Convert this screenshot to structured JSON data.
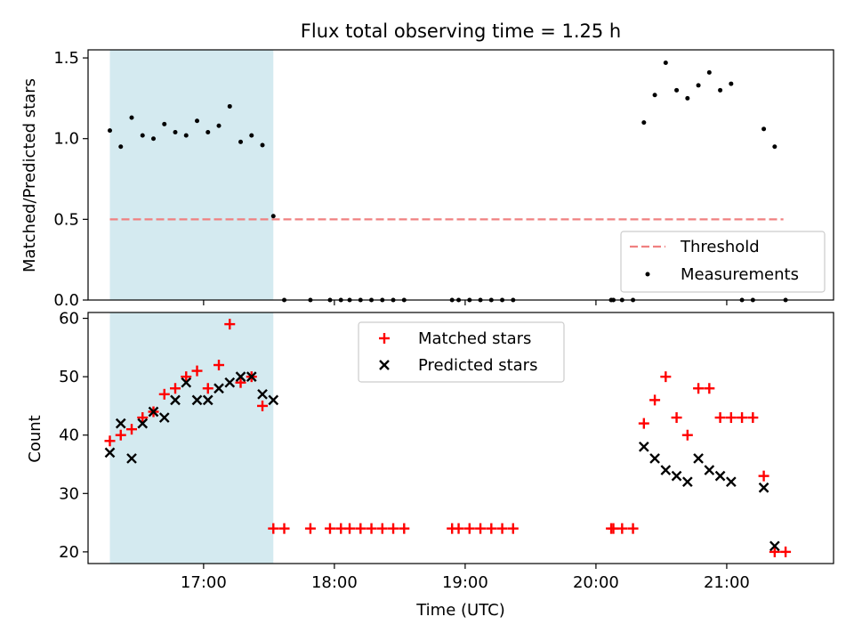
{
  "figure": {
    "title": "Flux total observing time = 1.25 h"
  },
  "chart_data": [
    {
      "type": "scatter",
      "panel": "top",
      "ylabel": "Matched/Predicted stars",
      "xlabel": "",
      "xlim": [
        "16:07",
        "21:49"
      ],
      "ylim": [
        0,
        1.55
      ],
      "yticks": [
        0.0,
        0.5,
        1.0,
        1.5
      ],
      "ytick_labels": [
        "0.0",
        "0.5",
        "1.0",
        "1.5"
      ],
      "grid": false,
      "legend_location": "lower right",
      "shaded_interval": {
        "start": "16:17",
        "end": "17:32",
        "color": "#d4eaf0"
      },
      "threshold": {
        "name": "Threshold",
        "value": 0.5,
        "start": "16:17",
        "end": "21:26",
        "color": "#f08080"
      },
      "series": [
        {
          "name": "Measurements",
          "color": "#000000",
          "marker": "dot",
          "points": [
            [
              "16:17",
              1.05
            ],
            [
              "16:22",
              0.95
            ],
            [
              "16:27",
              1.13
            ],
            [
              "16:32",
              1.02
            ],
            [
              "16:37",
              1.0
            ],
            [
              "16:42",
              1.09
            ],
            [
              "16:47",
              1.04
            ],
            [
              "16:52",
              1.02
            ],
            [
              "16:57",
              1.11
            ],
            [
              "17:02",
              1.04
            ],
            [
              "17:07",
              1.08
            ],
            [
              "17:12",
              1.2
            ],
            [
              "17:17",
              0.98
            ],
            [
              "17:22",
              1.02
            ],
            [
              "17:27",
              0.96
            ],
            [
              "17:32",
              0.52
            ],
            [
              "17:37",
              0.0
            ],
            [
              "17:49",
              0.0
            ],
            [
              "17:58",
              0.0
            ],
            [
              "18:03",
              0.0
            ],
            [
              "18:07",
              0.0
            ],
            [
              "18:12",
              0.0
            ],
            [
              "18:17",
              0.0
            ],
            [
              "18:22",
              0.0
            ],
            [
              "18:27",
              0.0
            ],
            [
              "18:32",
              0.0
            ],
            [
              "18:54",
              0.0
            ],
            [
              "18:57",
              0.0
            ],
            [
              "19:02",
              0.0
            ],
            [
              "19:07",
              0.0
            ],
            [
              "19:12",
              0.0
            ],
            [
              "19:17",
              0.0
            ],
            [
              "19:22",
              0.0
            ],
            [
              "20:07",
              0.0
            ],
            [
              "20:08",
              0.0
            ],
            [
              "20:12",
              0.0
            ],
            [
              "20:17",
              0.0
            ],
            [
              "20:22",
              1.1
            ],
            [
              "20:27",
              1.27
            ],
            [
              "20:32",
              1.47
            ],
            [
              "20:37",
              1.3
            ],
            [
              "20:42",
              1.25
            ],
            [
              "20:47",
              1.33
            ],
            [
              "20:52",
              1.41
            ],
            [
              "20:57",
              1.3
            ],
            [
              "21:02",
              1.34
            ],
            [
              "21:07",
              0.0
            ],
            [
              "21:12",
              0.0
            ],
            [
              "21:17",
              1.06
            ],
            [
              "21:22",
              0.95
            ],
            [
              "21:27",
              0.0
            ]
          ]
        }
      ]
    },
    {
      "type": "scatter",
      "panel": "bottom",
      "xlabel": "Time (UTC)",
      "ylabel": "Count",
      "xlim": [
        "16:07",
        "21:49"
      ],
      "ylim": [
        18,
        61
      ],
      "yticks": [
        20,
        30,
        40,
        50,
        60
      ],
      "ytick_labels": [
        "20",
        "30",
        "40",
        "50",
        "60"
      ],
      "xticks": [
        "17:00",
        "18:00",
        "19:00",
        "20:00",
        "21:00"
      ],
      "xtick_labels": [
        "17:00",
        "18:00",
        "19:00",
        "20:00",
        "21:00"
      ],
      "grid": false,
      "legend_location": "upper center",
      "shaded_interval": {
        "start": "16:17",
        "end": "17:32",
        "color": "#d4eaf0"
      },
      "series": [
        {
          "name": "Matched stars",
          "color": "#ff0000",
          "marker": "plus",
          "points": [
            [
              "16:17",
              39
            ],
            [
              "16:22",
              40
            ],
            [
              "16:27",
              41
            ],
            [
              "16:32",
              43
            ],
            [
              "16:37",
              44
            ],
            [
              "16:42",
              47
            ],
            [
              "16:47",
              48
            ],
            [
              "16:52",
              50
            ],
            [
              "16:57",
              51
            ],
            [
              "17:02",
              48
            ],
            [
              "17:07",
              52
            ],
            [
              "17:12",
              59
            ],
            [
              "17:17",
              49
            ],
            [
              "17:22",
              50
            ],
            [
              "17:27",
              45
            ],
            [
              "17:32",
              24
            ],
            [
              "17:37",
              24
            ],
            [
              "17:49",
              24
            ],
            [
              "17:58",
              24
            ],
            [
              "18:03",
              24
            ],
            [
              "18:07",
              24
            ],
            [
              "18:12",
              24
            ],
            [
              "18:17",
              24
            ],
            [
              "18:22",
              24
            ],
            [
              "18:27",
              24
            ],
            [
              "18:32",
              24
            ],
            [
              "18:54",
              24
            ],
            [
              "18:57",
              24
            ],
            [
              "19:02",
              24
            ],
            [
              "19:07",
              24
            ],
            [
              "19:12",
              24
            ],
            [
              "19:17",
              24
            ],
            [
              "19:22",
              24
            ],
            [
              "20:07",
              24
            ],
            [
              "20:08",
              24
            ],
            [
              "20:12",
              24
            ],
            [
              "20:17",
              24
            ],
            [
              "20:22",
              42
            ],
            [
              "20:27",
              46
            ],
            [
              "20:32",
              50
            ],
            [
              "20:37",
              43
            ],
            [
              "20:42",
              40
            ],
            [
              "20:47",
              48
            ],
            [
              "20:52",
              48
            ],
            [
              "20:57",
              43
            ],
            [
              "21:02",
              43
            ],
            [
              "21:07",
              43
            ],
            [
              "21:12",
              43
            ],
            [
              "21:17",
              33
            ],
            [
              "21:22",
              20
            ],
            [
              "21:27",
              20
            ]
          ]
        },
        {
          "name": "Predicted stars",
          "color": "#000000",
          "marker": "x",
          "points": [
            [
              "16:17",
              37
            ],
            [
              "16:22",
              42
            ],
            [
              "16:27",
              36
            ],
            [
              "16:32",
              42
            ],
            [
              "16:37",
              44
            ],
            [
              "16:42",
              43
            ],
            [
              "16:47",
              46
            ],
            [
              "16:52",
              49
            ],
            [
              "16:57",
              46
            ],
            [
              "17:02",
              46
            ],
            [
              "17:07",
              48
            ],
            [
              "17:12",
              49
            ],
            [
              "17:17",
              50
            ],
            [
              "17:22",
              50
            ],
            [
              "17:27",
              47
            ],
            [
              "17:32",
              46
            ],
            [
              "20:22",
              38
            ],
            [
              "20:27",
              36
            ],
            [
              "20:32",
              34
            ],
            [
              "20:37",
              33
            ],
            [
              "20:42",
              32
            ],
            [
              "20:47",
              36
            ],
            [
              "20:52",
              34
            ],
            [
              "20:57",
              33
            ],
            [
              "21:02",
              32
            ],
            [
              "21:17",
              31
            ],
            [
              "21:22",
              21
            ]
          ]
        }
      ]
    }
  ]
}
